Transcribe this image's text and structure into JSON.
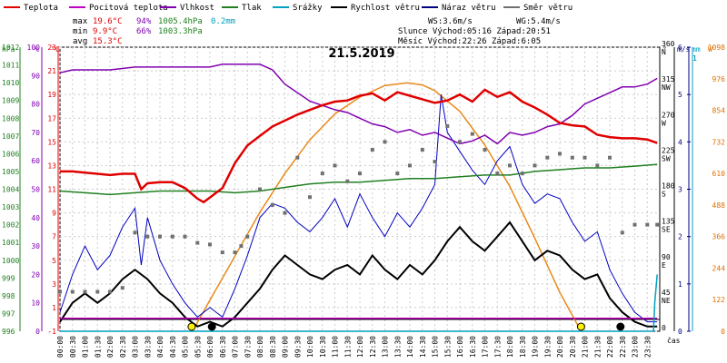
{
  "chart_data": {
    "type": "line",
    "title": "21.5.2019",
    "x_unit": "čas",
    "x_ticks": [
      "00:00",
      "00:30",
      "01:00",
      "01:30",
      "02:00",
      "02:30",
      "03:00",
      "03:30",
      "04:00",
      "04:30",
      "05:00",
      "05:30",
      "06:00",
      "06:30",
      "07:00",
      "07:30",
      "08:00",
      "08:30",
      "09:00",
      "09:30",
      "10:00",
      "10:30",
      "11:00",
      "11:30",
      "12:00",
      "12:30",
      "13:00",
      "13:30",
      "14:00",
      "14:30",
      "15:00",
      "15:30",
      "16:00",
      "16:30",
      "17:00",
      "17:30",
      "18:00",
      "18:30",
      "19:00",
      "19:30",
      "20:00",
      "20:30",
      "21:00",
      "21:30",
      "22:00",
      "22:30",
      "23:00",
      "23:30"
    ],
    "legend": [
      {
        "name": "Teplota",
        "color": "#e00000"
      },
      {
        "name": "Pocitová teplota",
        "color": "#c000c0"
      },
      {
        "name": "Vlhkost",
        "color": "#8000b0"
      },
      {
        "name": "Tlak",
        "color": "#208020"
      },
      {
        "name": "Srážky",
        "color": "#00a0c0"
      },
      {
        "name": "Rychlost větru",
        "color": "#000000"
      },
      {
        "name": "Náraz větru",
        "color": "#000080"
      },
      {
        "name": "Směr větru",
        "color": "#707070"
      }
    ],
    "stats": {
      "max": {
        "label": "max",
        "temp": "19.6°C",
        "hum": "94%",
        "press": "1005.4hPa",
        "rain": "0.2mm"
      },
      "min": {
        "label": "min",
        "temp": "9.9°C",
        "hum": "66%",
        "press": "1003.3hPa"
      },
      "avg": {
        "label": "avg",
        "temp": "15.3°C"
      },
      "ws": "WS:3.6m/s",
      "wg": "WG:5.4m/s",
      "sun": "Slunce Východ:05:16  Západ:20:51",
      "moon": "Měsíc  Východ:22:26  Západ:6:05"
    },
    "axes": {
      "hpa": {
        "unit": "hPa",
        "ticks": [
          "1012",
          "1011",
          "1010",
          "1009",
          "1008",
          "1007",
          "1006",
          "1005",
          "1004",
          "1003",
          "1002",
          "1001",
          "1000",
          "999",
          "998",
          "997",
          "996"
        ],
        "range": [
          996,
          1012
        ]
      },
      "pct": {
        "unit": "%",
        "ticks": [
          "100",
          "90",
          "80",
          "70",
          "60",
          "50",
          "40",
          "30",
          "20",
          "10",
          "0"
        ],
        "range": [
          0,
          100
        ]
      },
      "temp": {
        "unit": "°C",
        "ticks": [
          "23",
          "21",
          "19",
          "17",
          "15",
          "13",
          "11",
          "9",
          "7",
          "5",
          "3",
          "1",
          "-1"
        ],
        "range": [
          -1,
          23
        ]
      },
      "dir": {
        "unit": "°",
        "ticks": [
          {
            "v": "360",
            "l": "N"
          },
          {
            "v": "315",
            "l": "NW"
          },
          {
            "v": "270",
            "l": "W"
          },
          {
            "v": "225",
            "l": "SW"
          },
          {
            "v": "180",
            "l": "S"
          },
          {
            "v": "135",
            "l": "SE"
          },
          {
            "v": "90",
            "l": "E"
          },
          {
            "v": "45",
            "l": "NE"
          },
          {
            "v": "0",
            "l": ""
          }
        ],
        "range": [
          0,
          360
        ]
      },
      "ms": {
        "unit": "m/s",
        "ticks": [
          "6",
          "5",
          "4",
          "3",
          "2",
          "1",
          "0"
        ],
        "range": [
          0,
          6
        ],
        "top": "1"
      },
      "mm": {
        "unit": "mm",
        "top": "1"
      },
      "wm2": {
        "unit": "W",
        "ticks": [
          "1098",
          "976",
          "854",
          "732",
          "610",
          "488",
          "366",
          "244",
          "122",
          "0"
        ],
        "range": [
          0,
          1098
        ]
      }
    },
    "series": {
      "temp": {
        "name": "Teplota",
        "unit": "°C",
        "x": [
          0,
          0.5,
          1,
          1.5,
          2,
          2.5,
          3,
          3.25,
          3.5,
          4,
          4.5,
          5,
          5.5,
          5.75,
          6,
          6.25,
          6.5,
          7,
          7.5,
          8,
          8.5,
          9,
          9.5,
          10,
          10.5,
          11,
          11.5,
          12,
          12.5,
          13,
          13.5,
          14,
          14.5,
          15,
          15.5,
          16,
          16.5,
          17,
          17.5,
          18,
          18.5,
          19,
          19.5,
          20,
          20.5,
          21,
          21.5,
          22,
          22.5,
          23,
          23.5,
          23.9
        ],
        "values": [
          12.5,
          12.5,
          12.4,
          12.3,
          12.2,
          12.3,
          12.3,
          11.0,
          11.5,
          11.6,
          11.6,
          11.1,
          10.2,
          9.9,
          10.3,
          10.7,
          11.1,
          13.2,
          14.7,
          15.5,
          16.3,
          16.8,
          17.3,
          17.7,
          18.1,
          18.4,
          18.5,
          18.9,
          19.1,
          18.5,
          19.2,
          18.9,
          18.6,
          18.3,
          18.5,
          19.0,
          18.4,
          19.4,
          18.8,
          19.2,
          18.4,
          17.9,
          17.3,
          16.6,
          16.4,
          16.3,
          15.6,
          15.4,
          15.3,
          15.3,
          15.2,
          14.9
        ]
      },
      "feels": {
        "name": "Pocitová teplota",
        "unit": "°C",
        "x": [
          0,
          23.9
        ],
        "values": [
          0.1,
          0.1
        ]
      },
      "humidity": {
        "name": "Vlhkost",
        "unit": "%",
        "x": [
          0,
          0.5,
          1,
          2,
          3,
          4,
          5,
          6,
          6.5,
          7,
          8,
          8.5,
          9,
          10,
          11,
          11.5,
          12,
          12.5,
          13,
          13.5,
          14,
          14.5,
          15,
          15.5,
          16,
          16.5,
          17,
          17.5,
          18,
          18.5,
          19,
          19.5,
          20,
          20.5,
          21,
          21.5,
          22,
          22.5,
          23,
          23.5,
          23.9
        ],
        "values": [
          91,
          92,
          92,
          92,
          93,
          93,
          93,
          93,
          94,
          94,
          94,
          92,
          87,
          81,
          78,
          77,
          75,
          73,
          72,
          70,
          71,
          69,
          70,
          68,
          66,
          67,
          69,
          66,
          70,
          69,
          70,
          72,
          73,
          76,
          80,
          82,
          84,
          86,
          86,
          87,
          89
        ]
      },
      "pressure": {
        "name": "Tlak",
        "unit": "hPa",
        "x": [
          0,
          1,
          2,
          3,
          4,
          5,
          6,
          7,
          8,
          9,
          10,
          11,
          12,
          13,
          14,
          15,
          16,
          17,
          18,
          19,
          20,
          21,
          22,
          23,
          23.9
        ],
        "values": [
          1003.9,
          1003.8,
          1003.7,
          1003.8,
          1003.9,
          1003.9,
          1003.9,
          1003.8,
          1003.9,
          1004.1,
          1004.3,
          1004.4,
          1004.4,
          1004.5,
          1004.6,
          1004.6,
          1004.7,
          1004.8,
          1004.8,
          1005.0,
          1005.1,
          1005.2,
          1005.2,
          1005.3,
          1005.4
        ]
      },
      "wind_dir": {
        "name": "Směr větru",
        "unit": "°",
        "x": [
          0,
          0.5,
          1,
          1.5,
          2,
          2.5,
          3,
          3.5,
          4,
          4.5,
          5,
          5.5,
          6,
          6.5,
          7,
          7.25,
          7.5,
          8,
          8.5,
          9,
          9.5,
          10,
          10.5,
          11,
          11.5,
          12,
          12.5,
          13,
          13.5,
          14,
          14.5,
          15,
          15.5,
          16,
          16.5,
          17,
          17.5,
          18,
          18.5,
          19,
          19.5,
          20,
          20.5,
          21,
          21.5,
          22,
          22.5,
          23,
          23.5,
          23.9
        ],
        "values": [
          50,
          50,
          50,
          50,
          50,
          55,
          125,
          120,
          120,
          120,
          120,
          112,
          110,
          100,
          100,
          108,
          120,
          180,
          160,
          150,
          220,
          170,
          200,
          210,
          190,
          200,
          230,
          240,
          200,
          210,
          230,
          215,
          260,
          240,
          250,
          230,
          200,
          210,
          200,
          210,
          220,
          225,
          220,
          220,
          210,
          220,
          125,
          135,
          135,
          135
        ]
      },
      "wind_speed": {
        "name": "Rychlost větru",
        "unit": "m/s",
        "x": [
          0,
          0.5,
          1,
          1.5,
          2,
          2.5,
          3,
          3.5,
          4,
          4.5,
          5,
          5.5,
          6,
          6.5,
          7,
          7.5,
          8,
          8.5,
          9,
          9.5,
          10,
          10.5,
          11,
          11.5,
          12,
          12.5,
          13,
          13.5,
          14,
          14.5,
          15,
          15.5,
          16,
          16.5,
          17,
          17.5,
          18,
          18.5,
          19,
          19.5,
          20,
          20.5,
          21,
          21.5,
          22,
          22.5,
          23,
          23.5,
          23.9
        ],
        "values": [
          0.2,
          0.6,
          0.8,
          0.6,
          0.8,
          1.1,
          1.3,
          1.1,
          0.8,
          0.6,
          0.3,
          0.1,
          0.2,
          0.1,
          0.3,
          0.6,
          0.9,
          1.3,
          1.6,
          1.4,
          1.2,
          1.1,
          1.3,
          1.4,
          1.2,
          1.6,
          1.3,
          1.1,
          1.4,
          1.2,
          1.5,
          1.9,
          2.2,
          1.9,
          1.7,
          2.0,
          2.3,
          1.9,
          1.5,
          1.7,
          1.6,
          1.3,
          1.1,
          1.2,
          0.7,
          0.4,
          0.2,
          0.1,
          0.1
        ]
      },
      "wind_gust": {
        "name": "Náraz větru",
        "unit": "m/s",
        "x": [
          0,
          0.5,
          1,
          1.5,
          2,
          2.5,
          3,
          3.25,
          3.5,
          4,
          4.5,
          5,
          5.5,
          6,
          6.5,
          7,
          7.5,
          8,
          8.5,
          9,
          9.5,
          10,
          10.5,
          11,
          11.5,
          12,
          12.5,
          13,
          13.5,
          14,
          14.5,
          15,
          15.25,
          15.5,
          16,
          16.5,
          17,
          17.5,
          18,
          18.5,
          19,
          19.5,
          20,
          20.5,
          21,
          21.5,
          22,
          22.5,
          23,
          23.5,
          23.9
        ],
        "values": [
          0.4,
          1.2,
          1.8,
          1.3,
          1.6,
          2.2,
          2.6,
          1.4,
          2.4,
          1.5,
          1.0,
          0.6,
          0.3,
          0.5,
          0.3,
          0.9,
          1.6,
          2.4,
          2.7,
          2.6,
          2.3,
          2.1,
          2.4,
          2.8,
          2.2,
          2.9,
          2.4,
          2.0,
          2.5,
          2.2,
          2.6,
          3.1,
          5.0,
          4.2,
          3.8,
          3.4,
          3.1,
          3.6,
          3.9,
          3.1,
          2.7,
          2.9,
          2.8,
          2.3,
          1.9,
          2.1,
          1.3,
          0.8,
          0.4,
          0.2,
          0.2
        ]
      },
      "solar": {
        "name": "Sluneční záření",
        "unit": "W/m2",
        "x": [
          5.3,
          6,
          7,
          8,
          9,
          10,
          11,
          12,
          13,
          13.9,
          14.5,
          15,
          16,
          17,
          18,
          19,
          20,
          20.85
        ],
        "values": [
          0,
          120,
          290,
          460,
          610,
          740,
          840,
          905,
          950,
          960,
          952,
          930,
          850,
          720,
          560,
          360,
          150,
          0
        ]
      },
      "rain": {
        "name": "Srážky",
        "unit": "mm",
        "x": [
          0,
          23.75,
          23.8,
          23.9
        ],
        "values": [
          0,
          0,
          0.1,
          0.2
        ]
      }
    },
    "markers": [
      {
        "kind": "sunrise",
        "time": 5.27
      },
      {
        "kind": "moonset",
        "time": 6.08
      },
      {
        "kind": "sunset",
        "time": 20.85
      },
      {
        "kind": "moonrise",
        "time": 22.43
      }
    ]
  }
}
